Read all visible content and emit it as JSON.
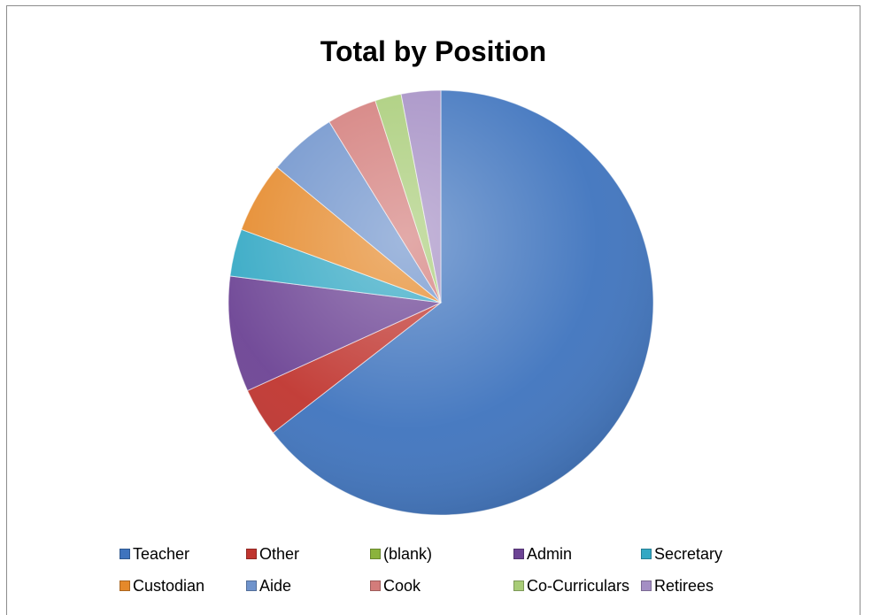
{
  "chart_data": {
    "type": "pie",
    "title": "Total by Position",
    "categories": [
      "Teacher",
      "Other",
      "(blank)",
      "Admin",
      "Secretary",
      "Custodian",
      "Aide",
      "Cook",
      "Co-Curriculars",
      "Retirees"
    ],
    "values": [
      64.5,
      3.7,
      0,
      8.8,
      3.6,
      5.4,
      5.2,
      3.8,
      2.0,
      3.0
    ],
    "unit": "%",
    "colors": [
      "#3f74be",
      "#c0352f",
      "#8bb33c",
      "#6c4394",
      "#33a8c4",
      "#e5892a",
      "#6f93cc",
      "#d37c7a",
      "#a8cc77",
      "#a48ec4"
    ],
    "legend_position": "bottom",
    "start_angle": "12 o'clock",
    "direction": "clockwise",
    "legend_order_for_layout": [
      [
        "Teacher",
        "Other",
        "(blank)",
        "Admin",
        "Secretary"
      ],
      [
        "Custodian",
        "Aide",
        "Cook",
        "Co-Curriculars",
        "Retirees"
      ]
    ]
  }
}
